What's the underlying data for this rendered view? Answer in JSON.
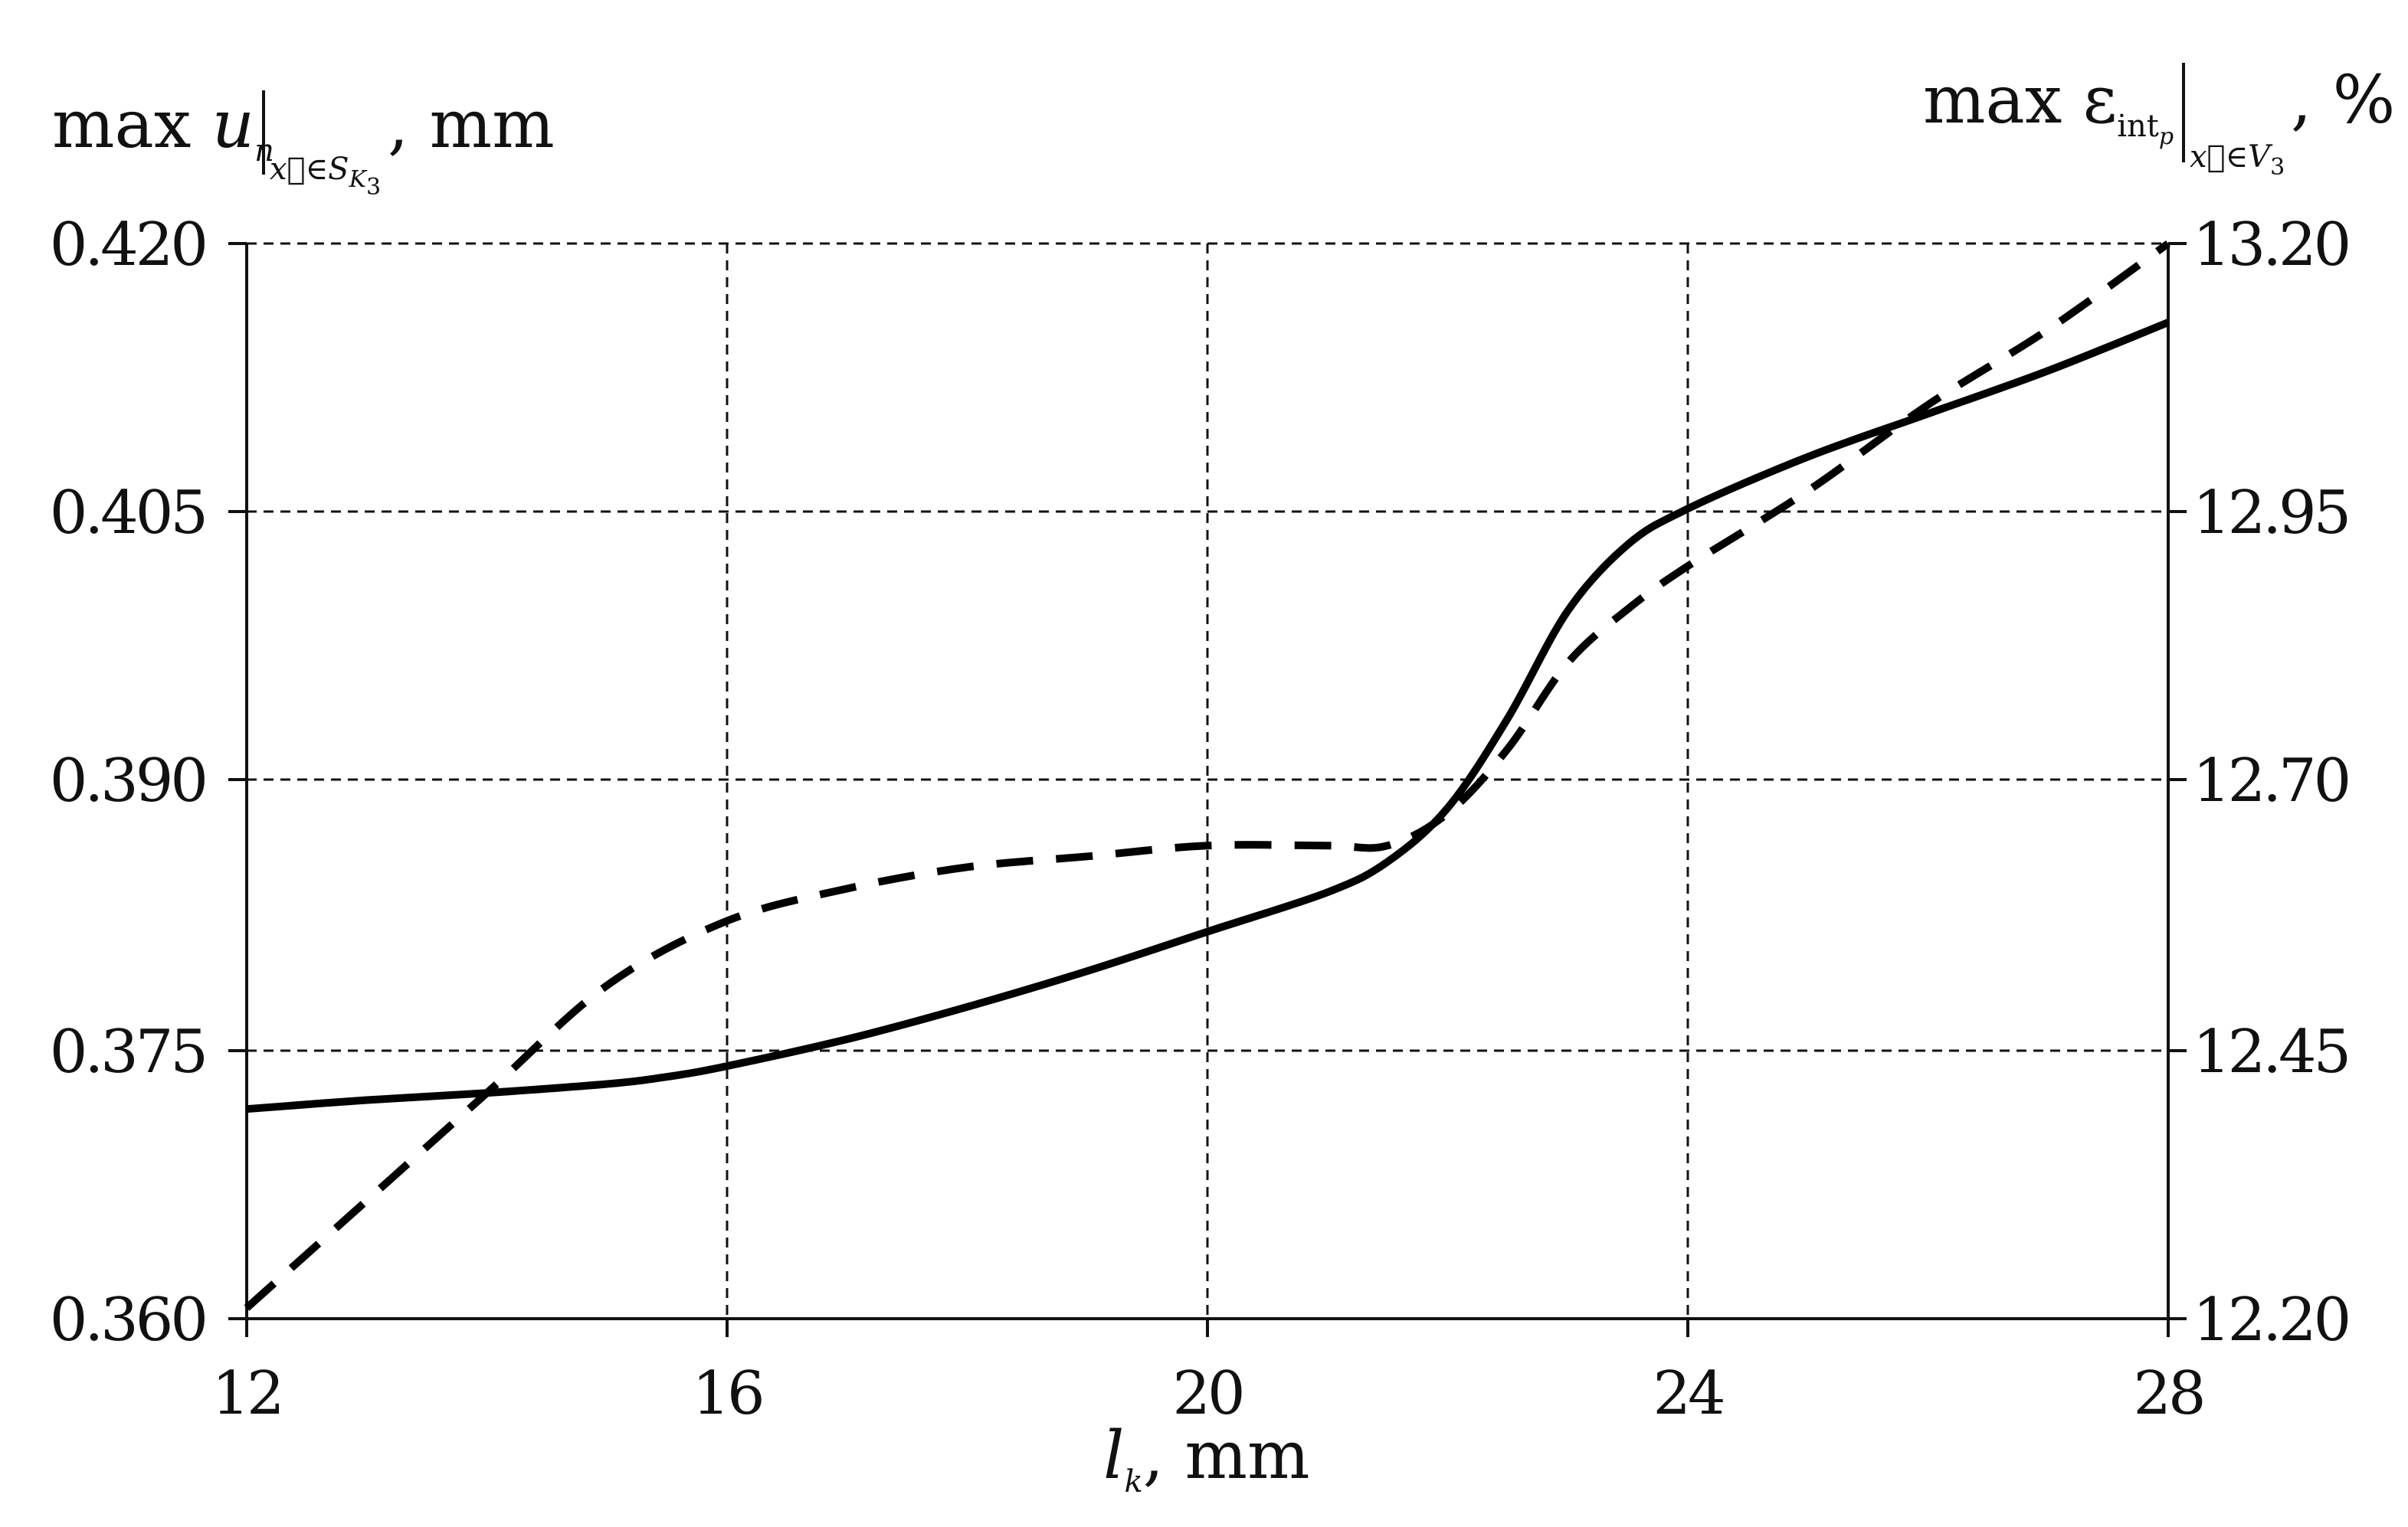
{
  "chart_data": {
    "type": "line",
    "x_ticks": [
      "12",
      "16",
      "20",
      "24",
      "28"
    ],
    "xlim": [
      12,
      28
    ],
    "x_title": {
      "var": "l",
      "sub": "k",
      "unit": ", mm"
    },
    "left_axis": {
      "ylim": [
        0.36,
        0.42
      ],
      "ticks": [
        "0.420",
        "0.405",
        "0.390",
        "0.375",
        "0.360"
      ],
      "title": {
        "prefix": "max ",
        "var": "u",
        "sub": "n",
        "eval": "x⃗∈S",
        "eval_sub": "K",
        "eval_sub2": "3",
        "unit": ", mm"
      }
    },
    "right_axis": {
      "ylim": [
        12.2,
        13.2
      ],
      "ticks": [
        "13.20",
        "12.95",
        "12.70",
        "12.45",
        "12.20"
      ],
      "title": {
        "prefix": "max ε",
        "sub": "int",
        "sub2": "p",
        "eval": "x⃗∈V",
        "eval_sub": "3",
        "unit": ", %"
      }
    },
    "grid": true,
    "series": [
      {
        "style": "solid",
        "axis": "left",
        "x": [
          12,
          13,
          14,
          15,
          15.5,
          16,
          17,
          18,
          19,
          20,
          21,
          21.5,
          22,
          22.5,
          23,
          23.5,
          24,
          25,
          26,
          27,
          28
        ],
        "y": [
          0.3717,
          0.3722,
          0.3726,
          0.3731,
          0.3735,
          0.3741,
          0.3756,
          0.3774,
          0.3794,
          0.3816,
          0.3838,
          0.3855,
          0.3885,
          0.3935,
          0.3995,
          0.4032,
          0.4052,
          0.4081,
          0.4105,
          0.4129,
          0.4156
        ]
      },
      {
        "style": "dashed",
        "axis": "right",
        "x": [
          12,
          13,
          14,
          15,
          16,
          17,
          18,
          19,
          20,
          21,
          21.5,
          22,
          22.5,
          23,
          23.5,
          24,
          25,
          26,
          27,
          28
        ],
        "y": [
          12.21,
          12.31,
          12.41,
          12.51,
          12.57,
          12.6,
          12.62,
          12.63,
          12.64,
          12.64,
          12.64,
          12.67,
          12.73,
          12.81,
          12.86,
          12.9,
          12.97,
          13.05,
          13.12,
          13.2
        ]
      }
    ]
  }
}
